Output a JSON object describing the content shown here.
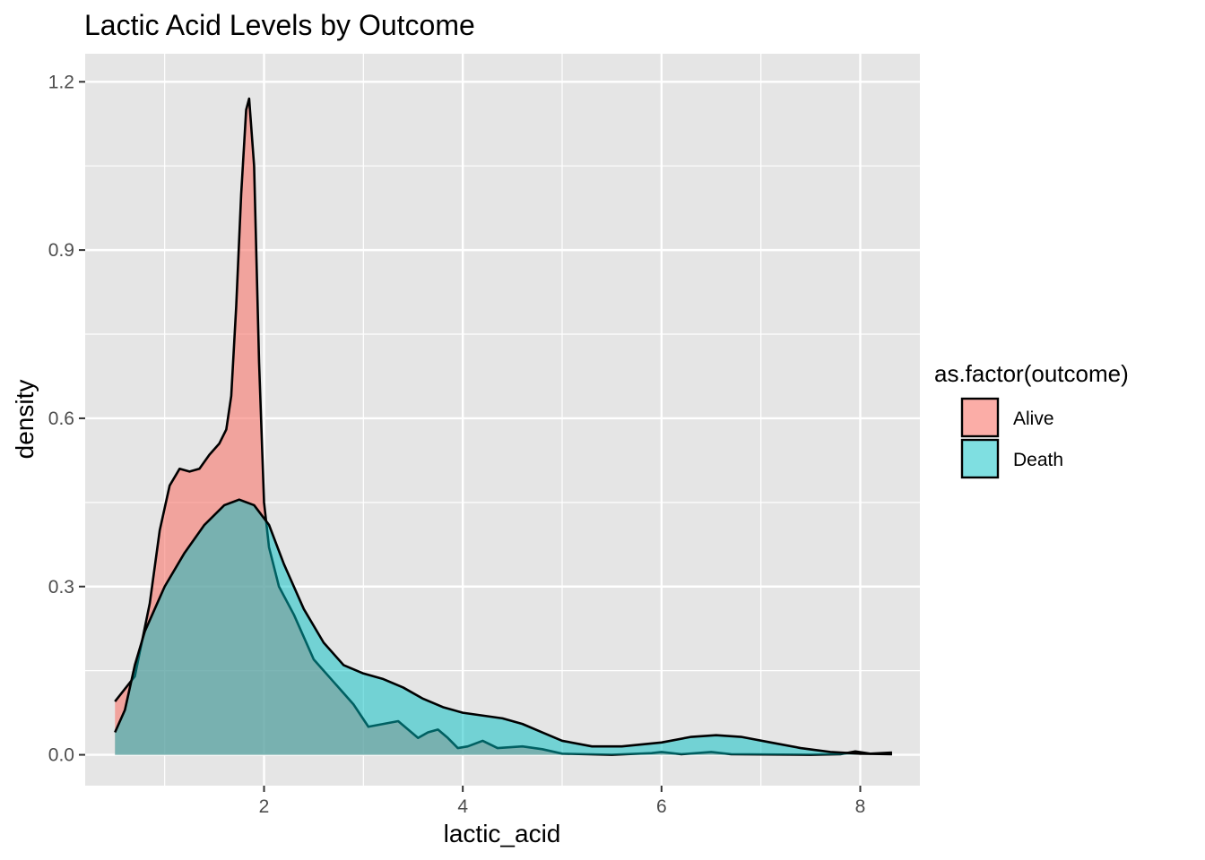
{
  "chart_data": {
    "type": "area",
    "title": "Lactic Acid Levels by Outcome",
    "xlabel": "lactic_acid",
    "ylabel": "density",
    "xlim": [
      0.2,
      8.6
    ],
    "ylim": [
      -0.055,
      1.25
    ],
    "x_ticks": [
      2,
      4,
      6,
      8
    ],
    "y_ticks": [
      0.0,
      0.3,
      0.6,
      0.9,
      1.2
    ],
    "y_tick_labels": [
      "0.0",
      "0.3",
      "0.6",
      "0.9",
      "1.2"
    ],
    "grid": true,
    "background": "#e5e5e5",
    "legend": {
      "title": "as.factor(outcome)",
      "position": "right"
    },
    "series": [
      {
        "name": "Alive",
        "color": "#f8766d",
        "fill_opacity": 0.6,
        "points": [
          [
            0.5,
            0.095
          ],
          [
            0.7,
            0.14
          ],
          [
            0.85,
            0.27
          ],
          [
            0.95,
            0.4
          ],
          [
            1.05,
            0.48
          ],
          [
            1.15,
            0.51
          ],
          [
            1.25,
            0.505
          ],
          [
            1.35,
            0.51
          ],
          [
            1.45,
            0.535
          ],
          [
            1.55,
            0.555
          ],
          [
            1.62,
            0.58
          ],
          [
            1.67,
            0.64
          ],
          [
            1.72,
            0.8
          ],
          [
            1.77,
            1.0
          ],
          [
            1.82,
            1.15
          ],
          [
            1.85,
            1.17
          ],
          [
            1.9,
            1.05
          ],
          [
            1.95,
            0.7
          ],
          [
            2.0,
            0.45
          ],
          [
            2.05,
            0.37
          ],
          [
            2.15,
            0.3
          ],
          [
            2.3,
            0.25
          ],
          [
            2.5,
            0.17
          ],
          [
            2.7,
            0.13
          ],
          [
            2.9,
            0.09
          ],
          [
            3.05,
            0.05
          ],
          [
            3.2,
            0.055
          ],
          [
            3.35,
            0.06
          ],
          [
            3.45,
            0.045
          ],
          [
            3.55,
            0.03
          ],
          [
            3.65,
            0.04
          ],
          [
            3.75,
            0.045
          ],
          [
            3.85,
            0.03
          ],
          [
            3.95,
            0.012
          ],
          [
            4.05,
            0.015
          ],
          [
            4.2,
            0.025
          ],
          [
            4.35,
            0.012
          ],
          [
            4.6,
            0.015
          ],
          [
            4.8,
            0.01
          ],
          [
            5.0,
            0.002
          ],
          [
            5.5,
            0.0
          ],
          [
            5.9,
            0.003
          ],
          [
            6.0,
            0.005
          ],
          [
            6.2,
            0.001
          ],
          [
            6.5,
            0.005
          ],
          [
            6.7,
            0.001
          ],
          [
            7.5,
            0.0
          ],
          [
            7.8,
            0.001
          ],
          [
            7.95,
            0.006
          ],
          [
            8.1,
            0.002
          ],
          [
            8.32,
            0.004
          ]
        ]
      },
      {
        "name": "Death",
        "color": "#00bfc4",
        "fill_opacity": 0.5,
        "points": [
          [
            0.5,
            0.04
          ],
          [
            0.6,
            0.08
          ],
          [
            0.7,
            0.16
          ],
          [
            0.8,
            0.22
          ],
          [
            0.9,
            0.26
          ],
          [
            1.0,
            0.3
          ],
          [
            1.2,
            0.36
          ],
          [
            1.4,
            0.41
          ],
          [
            1.6,
            0.445
          ],
          [
            1.75,
            0.455
          ],
          [
            1.9,
            0.445
          ],
          [
            2.05,
            0.41
          ],
          [
            2.2,
            0.34
          ],
          [
            2.4,
            0.26
          ],
          [
            2.6,
            0.2
          ],
          [
            2.8,
            0.16
          ],
          [
            3.0,
            0.145
          ],
          [
            3.2,
            0.135
          ],
          [
            3.4,
            0.12
          ],
          [
            3.6,
            0.1
          ],
          [
            3.8,
            0.085
          ],
          [
            4.0,
            0.075
          ],
          [
            4.2,
            0.07
          ],
          [
            4.4,
            0.065
          ],
          [
            4.6,
            0.055
          ],
          [
            4.8,
            0.04
          ],
          [
            5.0,
            0.025
          ],
          [
            5.3,
            0.015
          ],
          [
            5.6,
            0.015
          ],
          [
            6.0,
            0.022
          ],
          [
            6.3,
            0.032
          ],
          [
            6.55,
            0.035
          ],
          [
            6.8,
            0.032
          ],
          [
            7.1,
            0.022
          ],
          [
            7.4,
            0.012
          ],
          [
            7.7,
            0.005
          ],
          [
            8.0,
            0.002
          ],
          [
            8.32,
            0.001
          ]
        ]
      }
    ]
  }
}
